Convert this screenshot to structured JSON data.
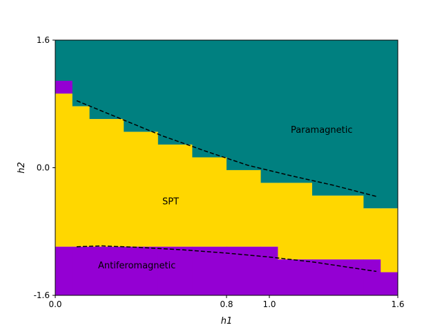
{
  "chart_data": {
    "type": "heatmap",
    "xlabel": "h1",
    "ylabel": "h2",
    "xlim": [
      0,
      1.6
    ],
    "ylim": [
      -1.6,
      1.6
    ],
    "xticks": [
      0.0,
      0.8,
      1.0,
      1.6
    ],
    "xtick_labels": [
      "0.0",
      "0.8",
      "1.0",
      "1.6"
    ],
    "yticks": [
      -1.6,
      0.0,
      1.6
    ],
    "ytick_labels": [
      "-1.6",
      "0.0",
      "1.6"
    ],
    "grid": false,
    "colors": {
      "paramagnetic": "#008080",
      "spt": "#FFD700",
      "antiferromagnetic": "#9400D3",
      "boundary_line": "#000000"
    },
    "phases": [
      {
        "key": "paramagnetic",
        "label": "Paramagnetic",
        "label_at": [
          1.1,
          0.44
        ]
      },
      {
        "key": "spt",
        "label": "SPT",
        "label_at": [
          0.5,
          -0.46
        ]
      },
      {
        "key": "antiferromagnetic",
        "label": "Antiferomagnetic",
        "label_at": [
          0.2,
          -1.26
        ]
      }
    ],
    "grid_cells": {
      "description_rows": "spt region per column: bottom and top boundary in h2",
      "columns": [
        {
          "x0": 0.0,
          "x1": 0.08,
          "spt_bottom": -0.99,
          "spt_top": 0.93,
          "extra_purple_top": 1.09
        },
        {
          "x0": 0.08,
          "x1": 0.16,
          "spt_bottom": -0.99,
          "spt_top": 0.77
        },
        {
          "x0": 0.16,
          "x1": 0.32,
          "spt_bottom": -0.99,
          "spt_top": 0.61
        },
        {
          "x0": 0.32,
          "x1": 0.48,
          "spt_bottom": -0.99,
          "spt_top": 0.45
        },
        {
          "x0": 0.48,
          "x1": 0.64,
          "spt_bottom": -0.99,
          "spt_top": 0.29
        },
        {
          "x0": 0.64,
          "x1": 0.8,
          "spt_bottom": -0.99,
          "spt_top": 0.13
        },
        {
          "x0": 0.8,
          "x1": 0.96,
          "spt_bottom": -0.99,
          "spt_top": -0.03
        },
        {
          "x0": 0.96,
          "x1": 1.04,
          "spt_bottom": -0.99,
          "spt_top": -0.19
        },
        {
          "x0": 1.04,
          "x1": 1.2,
          "spt_bottom": -1.15,
          "spt_top": -0.19
        },
        {
          "x0": 1.2,
          "x1": 1.44,
          "spt_bottom": -1.15,
          "spt_top": -0.35
        },
        {
          "x0": 1.44,
          "x1": 1.52,
          "spt_bottom": -1.15,
          "spt_top": -0.51
        },
        {
          "x0": 1.52,
          "x1": 1.6,
          "spt_bottom": -1.31,
          "spt_top": -0.51
        }
      ]
    },
    "series": [
      {
        "style": "dashed",
        "x": [
          0.1,
          0.3,
          0.5,
          0.7,
          0.9,
          1.1,
          1.3,
          1.5
        ],
        "y": [
          0.84,
          0.62,
          0.4,
          0.21,
          0.03,
          -0.1,
          -0.22,
          -0.36
        ]
      },
      {
        "style": "dashed",
        "x": [
          0.1,
          0.22,
          0.4,
          0.6,
          0.8,
          1.0,
          1.2,
          1.4,
          1.5
        ],
        "y": [
          -0.99,
          -0.98,
          -1.0,
          -1.03,
          -1.07,
          -1.12,
          -1.18,
          -1.26,
          -1.3
        ]
      }
    ]
  }
}
